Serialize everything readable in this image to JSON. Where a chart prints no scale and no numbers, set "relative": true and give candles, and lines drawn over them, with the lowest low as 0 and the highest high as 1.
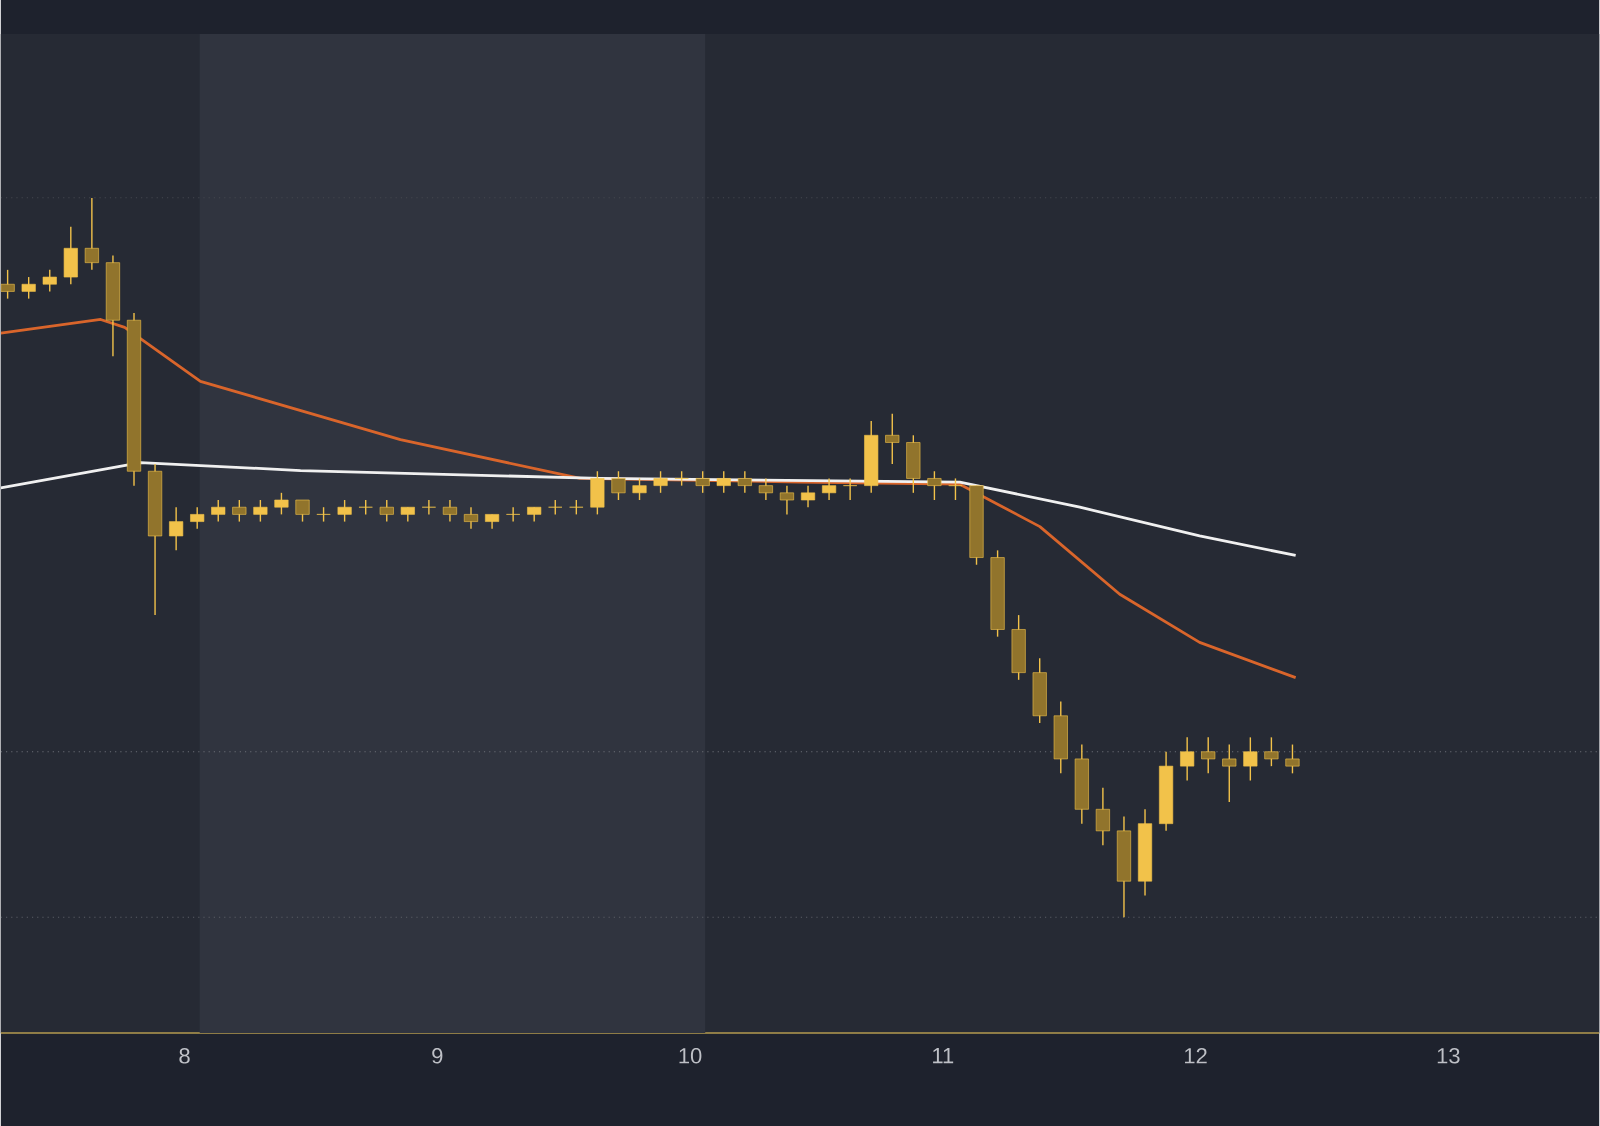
{
  "chart_data": {
    "type": "candlestick",
    "relative": true,
    "color": "#f2c24a",
    "x": [
      7.3,
      7.3833,
      7.4667,
      7.55,
      7.6333,
      7.7167,
      7.8,
      7.8833,
      7.9667,
      8.05,
      8.1333,
      8.2167,
      8.3,
      8.3833,
      8.4667,
      8.55,
      8.6333,
      8.7167,
      8.8,
      8.8833,
      8.9667,
      9.05,
      9.1333,
      9.2167,
      9.3,
      9.3833,
      9.4667,
      9.55,
      9.6333,
      9.7167,
      9.8,
      9.8833,
      9.9667,
      10.05,
      10.1333,
      10.2167,
      10.3,
      10.3833,
      10.4667,
      10.55,
      10.6333,
      10.7167,
      10.8,
      10.8833,
      10.9667,
      11.05,
      11.1333,
      11.2167,
      11.3,
      11.3833,
      11.4667,
      11.55,
      11.6333,
      11.7167,
      11.8,
      11.8833,
      11.9667,
      12.05,
      12.1333,
      12.2167,
      12.3,
      12.3833
    ],
    "ohlc": [
      [
        0.88,
        0.9,
        0.86,
        0.87
      ],
      [
        0.87,
        0.89,
        0.86,
        0.88
      ],
      [
        0.88,
        0.9,
        0.87,
        0.89
      ],
      [
        0.89,
        0.96,
        0.88,
        0.93
      ],
      [
        0.93,
        1.0,
        0.9,
        0.91
      ],
      [
        0.91,
        0.92,
        0.78,
        0.83
      ],
      [
        0.83,
        0.84,
        0.6,
        0.62
      ],
      [
        0.62,
        0.63,
        0.42,
        0.53
      ],
      [
        0.53,
        0.57,
        0.51,
        0.55
      ],
      [
        0.55,
        0.57,
        0.54,
        0.56
      ],
      [
        0.56,
        0.58,
        0.55,
        0.57
      ],
      [
        0.57,
        0.58,
        0.55,
        0.56
      ],
      [
        0.56,
        0.58,
        0.55,
        0.57
      ],
      [
        0.57,
        0.59,
        0.56,
        0.58
      ],
      [
        0.58,
        0.58,
        0.55,
        0.56
      ],
      [
        0.56,
        0.57,
        0.55,
        0.56
      ],
      [
        0.56,
        0.58,
        0.55,
        0.57
      ],
      [
        0.57,
        0.58,
        0.56,
        0.57
      ],
      [
        0.57,
        0.58,
        0.55,
        0.56
      ],
      [
        0.56,
        0.57,
        0.55,
        0.57
      ],
      [
        0.57,
        0.58,
        0.56,
        0.57
      ],
      [
        0.57,
        0.58,
        0.55,
        0.56
      ],
      [
        0.56,
        0.57,
        0.54,
        0.55
      ],
      [
        0.55,
        0.56,
        0.54,
        0.56
      ],
      [
        0.56,
        0.57,
        0.55,
        0.56
      ],
      [
        0.56,
        0.57,
        0.55,
        0.57
      ],
      [
        0.57,
        0.58,
        0.56,
        0.57
      ],
      [
        0.57,
        0.58,
        0.56,
        0.57
      ],
      [
        0.57,
        0.62,
        0.56,
        0.61
      ],
      [
        0.61,
        0.62,
        0.58,
        0.59
      ],
      [
        0.59,
        0.61,
        0.58,
        0.6
      ],
      [
        0.6,
        0.62,
        0.59,
        0.61
      ],
      [
        0.61,
        0.62,
        0.6,
        0.61
      ],
      [
        0.61,
        0.62,
        0.59,
        0.6
      ],
      [
        0.6,
        0.62,
        0.59,
        0.61
      ],
      [
        0.61,
        0.62,
        0.59,
        0.6
      ],
      [
        0.6,
        0.61,
        0.58,
        0.59
      ],
      [
        0.59,
        0.6,
        0.56,
        0.58
      ],
      [
        0.58,
        0.6,
        0.57,
        0.59
      ],
      [
        0.59,
        0.61,
        0.58,
        0.6
      ],
      [
        0.6,
        0.61,
        0.58,
        0.6
      ],
      [
        0.6,
        0.69,
        0.59,
        0.67
      ],
      [
        0.67,
        0.7,
        0.63,
        0.66
      ],
      [
        0.66,
        0.67,
        0.59,
        0.61
      ],
      [
        0.61,
        0.62,
        0.58,
        0.6
      ],
      [
        0.6,
        0.61,
        0.58,
        0.6
      ],
      [
        0.6,
        0.6,
        0.49,
        0.5
      ],
      [
        0.5,
        0.51,
        0.39,
        0.4
      ],
      [
        0.4,
        0.42,
        0.33,
        0.34
      ],
      [
        0.34,
        0.36,
        0.27,
        0.28
      ],
      [
        0.28,
        0.3,
        0.2,
        0.22
      ],
      [
        0.22,
        0.24,
        0.13,
        0.15
      ],
      [
        0.15,
        0.18,
        0.1,
        0.12
      ],
      [
        0.12,
        0.14,
        0.0,
        0.05
      ],
      [
        0.05,
        0.15,
        0.03,
        0.13
      ],
      [
        0.13,
        0.23,
        0.12,
        0.21
      ],
      [
        0.21,
        0.25,
        0.19,
        0.23
      ],
      [
        0.23,
        0.25,
        0.2,
        0.22
      ],
      [
        0.22,
        0.24,
        0.16,
        0.21
      ],
      [
        0.21,
        0.25,
        0.19,
        0.23
      ],
      [
        0.23,
        0.25,
        0.21,
        0.22
      ],
      [
        0.22,
        0.24,
        0.2,
        0.21
      ]
    ],
    "series": [
      {
        "type": "line",
        "color": "#d9652b",
        "x": [
          7.273,
          7.668,
          7.763,
          8.063,
          8.854,
          9.566,
          10.435,
          11.067,
          11.384,
          11.7,
          12.016,
          12.396
        ],
        "values": [
          0.812,
          0.831,
          0.82,
          0.745,
          0.664,
          0.61,
          0.605,
          0.602,
          0.543,
          0.449,
          0.382,
          0.333
        ]
      },
      {
        "type": "line",
        "color": "#f0f0f0",
        "x": [
          7.273,
          7.826,
          8.459,
          9.644,
          11.067,
          11.542,
          12.016,
          12.396
        ],
        "values": [
          0.597,
          0.632,
          0.621,
          0.61,
          0.605,
          0.57,
          0.53,
          0.503
        ]
      }
    ],
    "xlim": [
      7.273,
      13.597
    ],
    "xticks": [
      8,
      9,
      10,
      11,
      12,
      13
    ],
    "bands": [
      {
        "axis": "x",
        "from": 8.06,
        "to": 10.06,
        "color": "#30343f"
      }
    ],
    "ref_lines": [
      {
        "axis": "y",
        "value": 0.23,
        "color": "#6a6d75",
        "line_style": "dotted"
      },
      {
        "axis": "y",
        "value": 0,
        "color": "#5a5d65",
        "line_style": "dotted"
      },
      {
        "axis": "y",
        "value": 1,
        "color": "#44474f",
        "line_style": "dotted"
      }
    ]
  }
}
